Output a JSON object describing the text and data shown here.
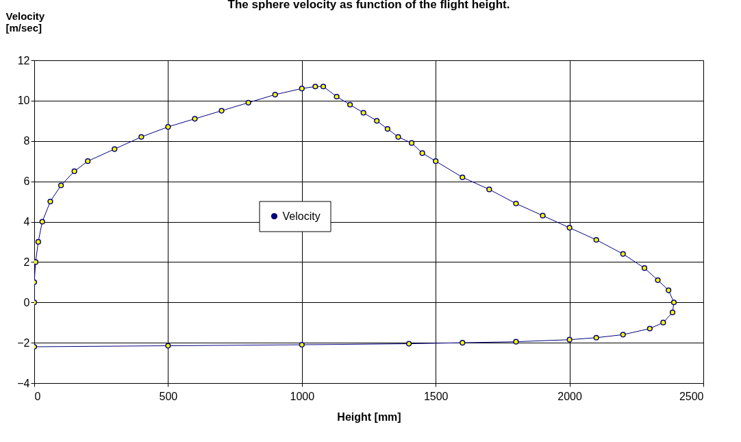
{
  "chart_data": {
    "type": "line",
    "title": "The sphere velocity as function of the flight height.",
    "xlabel": "Height [mm]",
    "ylabel": "Velocity [m/sec]",
    "xlim": [
      0,
      2500
    ],
    "xticks": [
      0,
      500,
      1000,
      1500,
      2000,
      2500
    ],
    "ylim": [
      -4,
      12
    ],
    "yticks": [
      -4,
      -2,
      0,
      2,
      4,
      6,
      8,
      10,
      12
    ],
    "grid": true,
    "legend": "center",
    "marker": "circle",
    "series": [
      {
        "name": "Velocity",
        "color": "#000080",
        "x": [
          0,
          0,
          5,
          15,
          30,
          60,
          100,
          150,
          200,
          300,
          400,
          500,
          600,
          700,
          800,
          900,
          1000,
          1050,
          1080,
          1130,
          1180,
          1230,
          1280,
          1320,
          1360,
          1410,
          1450,
          1500,
          1600,
          1700,
          1800,
          1900,
          2000,
          2100,
          2200,
          2280,
          2330,
          2370,
          2390,
          2385,
          2350,
          2300,
          2200,
          2100,
          2000,
          1800,
          1600,
          1400,
          1000,
          500,
          0
        ],
        "values": [
          0,
          1,
          2,
          3,
          4,
          5,
          5.8,
          6.5,
          7,
          7.6,
          8.2,
          8.7,
          9.1,
          9.5,
          9.9,
          10.3,
          10.6,
          10.7,
          10.7,
          10.2,
          9.8,
          9.4,
          9,
          8.6,
          8.2,
          7.9,
          7.4,
          7,
          6.2,
          5.6,
          4.9,
          4.3,
          3.7,
          3.1,
          2.4,
          1.7,
          1.1,
          0.6,
          0,
          -0.5,
          -1,
          -1.3,
          -1.6,
          -1.75,
          -1.85,
          -1.95,
          -2,
          -2.05,
          -2.1,
          -2.15,
          -2.2
        ]
      }
    ]
  }
}
